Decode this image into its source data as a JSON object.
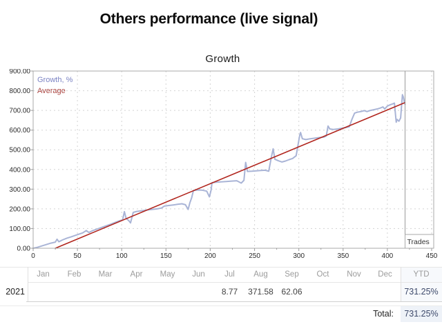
{
  "header": {
    "title": "Others performance (live signal)"
  },
  "chart": {
    "title": "Growth",
    "legend": [
      {
        "label": "Growth, %",
        "color": "#7c84c4"
      },
      {
        "label": "Average",
        "color": "#a9403c"
      }
    ],
    "corner_label": "Trades"
  },
  "chart_data": {
    "type": "line",
    "title": "Growth",
    "xlabel": "Trades",
    "ylabel": "Growth, %",
    "xlim": [
      0,
      450
    ],
    "ylim": [
      0,
      900
    ],
    "xtick_step": 50,
    "ytick_step": 100,
    "grid": true,
    "legend_position": "top-left",
    "end_line_x": 420,
    "series": [
      {
        "name": "Growth, %",
        "color": "#a9b4d6",
        "width": 2,
        "points": [
          [
            0,
            0
          ],
          [
            5,
            5
          ],
          [
            10,
            12
          ],
          [
            15,
            19
          ],
          [
            20,
            26
          ],
          [
            25,
            31
          ],
          [
            27,
            46
          ],
          [
            29,
            33
          ],
          [
            33,
            42
          ],
          [
            38,
            51
          ],
          [
            43,
            58
          ],
          [
            48,
            66
          ],
          [
            52,
            72
          ],
          [
            56,
            78
          ],
          [
            60,
            90
          ],
          [
            63,
            80
          ],
          [
            67,
            89
          ],
          [
            72,
            97
          ],
          [
            77,
            105
          ],
          [
            82,
            113
          ],
          [
            88,
            123
          ],
          [
            93,
            132
          ],
          [
            98,
            140
          ],
          [
            101,
            144
          ],
          [
            103,
            186
          ],
          [
            105,
            152
          ],
          [
            108,
            140
          ],
          [
            110,
            129
          ],
          [
            113,
            182
          ],
          [
            117,
            187
          ],
          [
            122,
            190
          ],
          [
            128,
            194
          ],
          [
            134,
            197
          ],
          [
            140,
            200
          ],
          [
            145,
            204
          ],
          [
            148,
            214
          ],
          [
            153,
            217
          ],
          [
            158,
            220
          ],
          [
            163,
            223
          ],
          [
            168,
            226
          ],
          [
            172,
            221
          ],
          [
            175,
            197
          ],
          [
            177,
            232
          ],
          [
            179,
            256
          ],
          [
            181,
            293
          ],
          [
            186,
            296
          ],
          [
            191,
            295
          ],
          [
            196,
            290
          ],
          [
            199,
            261
          ],
          [
            201,
            296
          ],
          [
            202,
            333
          ],
          [
            207,
            335
          ],
          [
            212,
            337
          ],
          [
            218,
            339
          ],
          [
            224,
            341
          ],
          [
            230,
            343
          ],
          [
            235,
            331
          ],
          [
            238,
            345
          ],
          [
            240,
            436
          ],
          [
            242,
            390
          ],
          [
            247,
            391
          ],
          [
            252,
            393
          ],
          [
            257,
            395
          ],
          [
            262,
            396
          ],
          [
            266,
            391
          ],
          [
            269,
            462
          ],
          [
            271,
            505
          ],
          [
            273,
            452
          ],
          [
            277,
            444
          ],
          [
            281,
            438
          ],
          [
            285,
            443
          ],
          [
            289,
            450
          ],
          [
            293,
            456
          ],
          [
            297,
            470
          ],
          [
            299,
            522
          ],
          [
            301,
            572
          ],
          [
            302,
            588
          ],
          [
            304,
            556
          ],
          [
            308,
            552
          ],
          [
            313,
            556
          ],
          [
            318,
            559
          ],
          [
            323,
            562
          ],
          [
            328,
            564
          ],
          [
            331,
            570
          ],
          [
            333,
            621
          ],
          [
            335,
            606
          ],
          [
            339,
            603
          ],
          [
            344,
            606
          ],
          [
            349,
            610
          ],
          [
            353,
            613
          ],
          [
            357,
            617
          ],
          [
            360,
            655
          ],
          [
            363,
            686
          ],
          [
            366,
            691
          ],
          [
            370,
            694
          ],
          [
            374,
            699
          ],
          [
            377,
            694
          ],
          [
            381,
            700
          ],
          [
            385,
            704
          ],
          [
            389,
            708
          ],
          [
            392,
            712
          ],
          [
            395,
            718
          ],
          [
            397,
            707
          ],
          [
            400,
            722
          ],
          [
            403,
            728
          ],
          [
            406,
            733
          ],
          [
            408,
            737
          ],
          [
            410,
            640
          ],
          [
            411,
            654
          ],
          [
            413,
            645
          ],
          [
            415,
            662
          ],
          [
            417,
            780
          ],
          [
            418,
            768
          ],
          [
            419,
            745
          ],
          [
            420,
            731
          ]
        ]
      },
      {
        "name": "Average",
        "color": "#b1251d",
        "width": 1.6,
        "points": [
          [
            25,
            0
          ],
          [
            420,
            740
          ]
        ]
      }
    ]
  },
  "table": {
    "columns": [
      "Jan",
      "Feb",
      "Mar",
      "Apr",
      "May",
      "Jun",
      "Jul",
      "Aug",
      "Sep",
      "Oct",
      "Nov",
      "Dec",
      "YTD"
    ],
    "rows": [
      {
        "year": "2021",
        "cells": [
          "",
          "",
          "",
          "",
          "",
          "",
          "8.77",
          "371.58",
          "62.06",
          "",
          "",
          ""
        ],
        "ytd": "731.25%"
      }
    ],
    "total_label": "Total:",
    "total_value": "731.25%"
  }
}
